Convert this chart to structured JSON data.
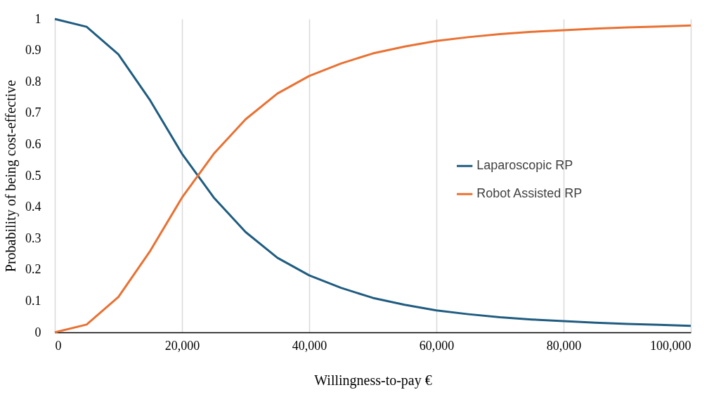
{
  "chart_data": {
    "type": "line",
    "xlabel": "Willingness-to-pay €",
    "ylabel": "Probability of being cost-effective",
    "x": [
      0,
      5000,
      10000,
      15000,
      20000,
      25000,
      30000,
      35000,
      40000,
      45000,
      50000,
      55000,
      60000,
      65000,
      70000,
      75000,
      80000,
      85000,
      90000,
      95000,
      100000
    ],
    "series": [
      {
        "name": "Laparoscopic RP",
        "color": "#1f5c80",
        "values": [
          1.0,
          0.975,
          0.887,
          0.74,
          0.57,
          0.43,
          0.32,
          0.238,
          0.182,
          0.142,
          0.11,
          0.088,
          0.07,
          0.058,
          0.048,
          0.041,
          0.036,
          0.031,
          0.027,
          0.024,
          0.021
        ]
      },
      {
        "name": "Robot Assisted RP",
        "color": "#e97132",
        "values": [
          0.0,
          0.025,
          0.113,
          0.26,
          0.43,
          0.57,
          0.68,
          0.762,
          0.818,
          0.858,
          0.89,
          0.912,
          0.93,
          0.942,
          0.952,
          0.959,
          0.964,
          0.969,
          0.973,
          0.976,
          0.979
        ]
      }
    ],
    "xlim": [
      0,
      100000
    ],
    "xticks": [
      0,
      {
        "value": 20000,
        "label": "20,000"
      },
      {
        "value": 40000,
        "label": "40,000"
      },
      {
        "value": 60000,
        "label": "60,000"
      },
      {
        "value": 80000,
        "label": "80,000"
      },
      {
        "value": 100000,
        "label": "100,000"
      }
    ],
    "ylim": [
      0,
      1
    ],
    "yticks": [
      0,
      0.1,
      0.2,
      0.3,
      0.4,
      0.5,
      0.6,
      0.7,
      0.8,
      0.9,
      1
    ],
    "grid": "x",
    "legend": "right",
    "marker": "none",
    "line_style": "solid"
  }
}
